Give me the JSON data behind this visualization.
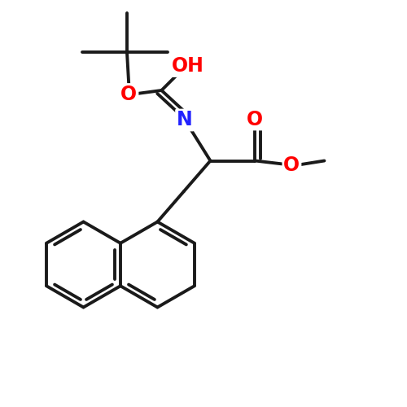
{
  "background_color": "#ffffff",
  "bond_color": "#1a1a1a",
  "bond_width": 2.8,
  "atom_colors": {
    "O": "#ff0000",
    "N": "#2222ff",
    "C": "#1a1a1a"
  },
  "font_size_atoms": 17,
  "figsize": [
    5.0,
    5.0
  ],
  "dpi": 100,
  "xlim": [
    0,
    10
  ],
  "ylim": [
    0,
    10
  ]
}
